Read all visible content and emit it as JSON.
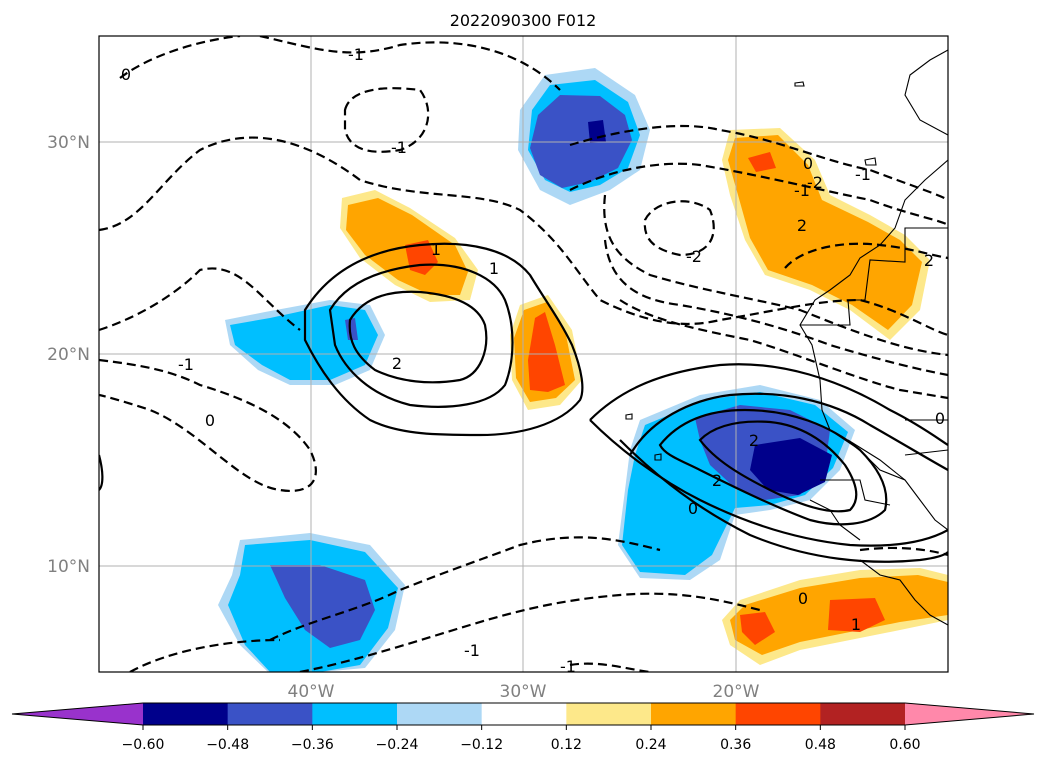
{
  "title": "2022090300 F012",
  "lat_labels": [
    "30°N",
    "20°N",
    "10°N"
  ],
  "lon_labels": [
    "40°W",
    "30°W",
    "20°W"
  ],
  "colorbar": {
    "ticks": [
      "−0.60",
      "−0.48",
      "−0.36",
      "−0.24",
      "−0.12",
      "0.12",
      "0.24",
      "0.36",
      "0.48",
      "0.60"
    ],
    "colors": [
      "#9932cc",
      "#00008b",
      "#3a52c6",
      "#00bfff",
      "#add8f5",
      "#ffffff",
      "#fde88a",
      "#ffa500",
      "#ff4500",
      "#b22222",
      "#ff88aa"
    ],
    "extend": "both"
  },
  "contour_labels": [
    "-1",
    "0",
    "-1",
    "-1",
    "0",
    "1",
    "2",
    "1",
    "-2",
    "-1",
    "0",
    "-1",
    "-1",
    "-1",
    "2",
    "2",
    "2",
    "2",
    "0",
    "0",
    "1",
    "0",
    "-2"
  ]
}
